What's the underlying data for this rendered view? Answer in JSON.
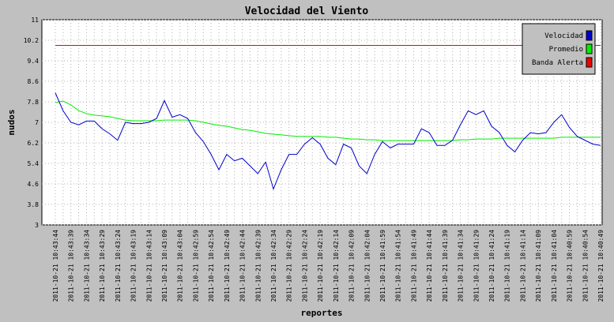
{
  "chart_data": {
    "type": "line",
    "title": "Velocidad del Viento",
    "x_label": "reportes",
    "y_label": "nudos",
    "categories": [
      "2011-10-21 10:43:44",
      null,
      "2011-10-21 10:43:39",
      null,
      "2011-10-21 10:43:34",
      null,
      "2011-10-21 10:43:29",
      null,
      "2011-10-21 10:43:24",
      null,
      "2011-10-21 10:43:19",
      null,
      "2011-10-21 10:43:14",
      null,
      "2011-10-21 10:43:09",
      null,
      "2011-10-21 10:43:04",
      null,
      "2011-10-21 10:42:59",
      null,
      "2011-10-21 10:42:54",
      null,
      "2011-10-21 10:42:49",
      null,
      "2011-10-21 10:42:44",
      null,
      "2011-10-21 10:42:39",
      null,
      "2011-10-21 10:42:34",
      null,
      "2011-10-21 10:42:29",
      null,
      "2011-10-21 10:42:24",
      null,
      "2011-10-21 10:42:19",
      null,
      "2011-10-21 10:42:14",
      null,
      "2011-10-21 10:42:09",
      null,
      "2011-10-21 10:42:04",
      null,
      "2011-10-21 10:41:59",
      null,
      "2011-10-21 10:41:54",
      null,
      "2011-10-21 10:41:49",
      null,
      "2011-10-21 10:41:44",
      null,
      "2011-10-21 10:41:39",
      null,
      "2011-10-21 10:41:34",
      null,
      "2011-10-21 10:41:29",
      null,
      "2011-10-21 10:41:24",
      null,
      "2011-10-21 10:41:19",
      null,
      "2011-10-21 10:41:14",
      null,
      "2011-10-21 10:41:09",
      null,
      "2011-10-21 10:41:04",
      null,
      "2011-10-21 10:40:59",
      null,
      "2011-10-21 10:40:54",
      null,
      "2011-10-21 10:40:49"
    ],
    "series": [
      {
        "name": "Velocidad",
        "color": "#0000cc",
        "values": [
          8.15,
          7.45,
          7.0,
          6.9,
          7.05,
          7.05,
          6.75,
          6.55,
          6.3,
          7.0,
          6.95,
          6.95,
          7.0,
          7.15,
          7.85,
          7.2,
          7.3,
          7.15,
          6.6,
          6.25,
          5.75,
          5.15,
          5.75,
          5.5,
          5.6,
          5.3,
          5.0,
          5.45,
          4.4,
          5.15,
          5.75,
          5.75,
          6.15,
          6.4,
          6.15,
          5.6,
          5.35,
          6.15,
          6.0,
          5.3,
          5.0,
          5.75,
          6.25,
          6.0,
          6.15,
          6.15,
          6.15,
          6.75,
          6.6,
          6.1,
          6.1,
          6.3,
          6.9,
          7.45,
          7.3,
          7.45,
          6.85,
          6.6,
          6.1,
          5.85,
          6.3,
          6.6,
          6.55,
          6.6,
          7.0,
          7.3,
          6.8,
          6.45,
          6.3,
          6.15,
          6.1
        ]
      },
      {
        "name": "Promedio",
        "color": "#00ee00",
        "values": [
          7.77,
          7.83,
          7.68,
          7.46,
          7.34,
          7.28,
          7.25,
          7.22,
          7.15,
          7.09,
          7.06,
          7.06,
          7.06,
          7.06,
          7.09,
          7.09,
          7.09,
          7.09,
          7.06,
          7.0,
          6.94,
          6.88,
          6.85,
          6.78,
          6.72,
          6.69,
          6.63,
          6.57,
          6.54,
          6.51,
          6.48,
          6.45,
          6.45,
          6.45,
          6.45,
          6.42,
          6.42,
          6.38,
          6.35,
          6.35,
          6.32,
          6.32,
          6.29,
          6.29,
          6.29,
          6.29,
          6.29,
          6.29,
          6.29,
          6.29,
          6.29,
          6.29,
          6.32,
          6.32,
          6.35,
          6.35,
          6.35,
          6.38,
          6.38,
          6.38,
          6.38,
          6.38,
          6.38,
          6.38,
          6.38,
          6.42,
          6.42,
          6.42,
          6.42,
          6.42,
          6.42
        ]
      },
      {
        "name": "Banda Alerta",
        "color": "#ee0000",
        "values": [
          10,
          10,
          10,
          10,
          10,
          10,
          10,
          10,
          10,
          10,
          10,
          10,
          10,
          10,
          10,
          10,
          10,
          10,
          10,
          10,
          10,
          10,
          10,
          10,
          10,
          10,
          10,
          10,
          10,
          10,
          10,
          10,
          10,
          10,
          10,
          10,
          10,
          10,
          10,
          10,
          10,
          10,
          10,
          10,
          10,
          10,
          10,
          10,
          10,
          10,
          10,
          10,
          10,
          10,
          10,
          10,
          10,
          10,
          10,
          10,
          10,
          10,
          10,
          10,
          10,
          10,
          10,
          10,
          10,
          10,
          10
        ]
      }
    ],
    "ylim": [
      3,
      11
    ],
    "yticks": [
      3,
      3.8,
      4.6,
      5.4,
      6.2,
      7,
      7.8,
      8.6,
      9.4,
      10.2,
      11
    ],
    "grid": true,
    "legend": "top-right"
  }
}
